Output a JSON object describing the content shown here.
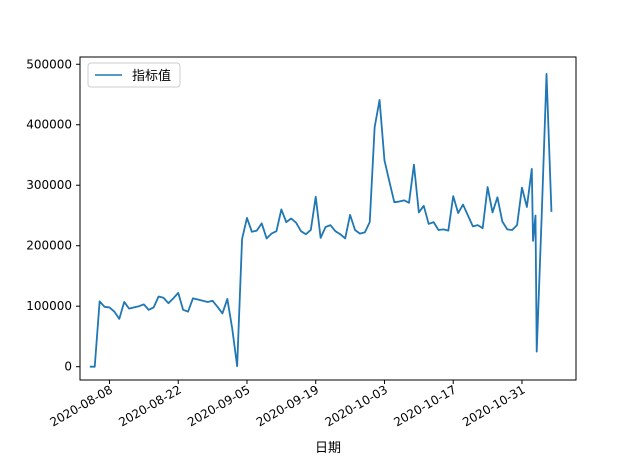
{
  "chart_data": {
    "type": "line",
    "xlabel": "日期",
    "ylabel": "",
    "x_ticks": [
      "2020-08-08",
      "2020-08-22",
      "2020-09-05",
      "2020-09-19",
      "2020-10-03",
      "2020-10-17",
      "2020-10-31"
    ],
    "y_ticks": [
      "0",
      "100000",
      "200000",
      "300000",
      "400000",
      "500000"
    ],
    "xlim": [
      "2020-08-02",
      "2020-11-11"
    ],
    "ylim": [
      -22000,
      512000
    ],
    "legend_position": "top-left",
    "grid": false,
    "series": [
      {
        "name": "指标值",
        "color": "#1f77b4",
        "points": [
          [
            "2020-08-04",
            0
          ],
          [
            "2020-08-05",
            0
          ],
          [
            "2020-08-06",
            108000
          ],
          [
            "2020-08-07",
            99000
          ],
          [
            "2020-08-08",
            98000
          ],
          [
            "2020-08-09",
            91000
          ],
          [
            "2020-08-10",
            79000
          ],
          [
            "2020-08-11",
            107000
          ],
          [
            "2020-08-12",
            96000
          ],
          [
            "2020-08-13",
            98000
          ],
          [
            "2020-08-14",
            100000
          ],
          [
            "2020-08-15",
            103000
          ],
          [
            "2020-08-16",
            94000
          ],
          [
            "2020-08-17",
            98000
          ],
          [
            "2020-08-18",
            116000
          ],
          [
            "2020-08-19",
            114000
          ],
          [
            "2020-08-20",
            105000
          ],
          [
            "2020-08-21",
            113000
          ],
          [
            "2020-08-22",
            122000
          ],
          [
            "2020-08-23",
            94000
          ],
          [
            "2020-08-24",
            91000
          ],
          [
            "2020-08-25",
            113000
          ],
          [
            "2020-08-26",
            111000
          ],
          [
            "2020-08-27",
            109000
          ],
          [
            "2020-08-28",
            107000
          ],
          [
            "2020-08-29",
            109000
          ],
          [
            "2020-08-30",
            99000
          ],
          [
            "2020-08-31",
            88000
          ],
          [
            "2020-09-01",
            112000
          ],
          [
            "2020-09-02",
            63000
          ],
          [
            "2020-09-03",
            1000
          ],
          [
            "2020-09-04",
            211000
          ],
          [
            "2020-09-05",
            246000
          ],
          [
            "2020-09-06",
            223000
          ],
          [
            "2020-09-07",
            225000
          ],
          [
            "2020-09-08",
            237000
          ],
          [
            "2020-09-09",
            212000
          ],
          [
            "2020-09-10",
            220000
          ],
          [
            "2020-09-11",
            224000
          ],
          [
            "2020-09-12",
            260000
          ],
          [
            "2020-09-13",
            239000
          ],
          [
            "2020-09-14",
            245000
          ],
          [
            "2020-09-15",
            238000
          ],
          [
            "2020-09-16",
            224000
          ],
          [
            "2020-09-17",
            219000
          ],
          [
            "2020-09-18",
            226000
          ],
          [
            "2020-09-19",
            281000
          ],
          [
            "2020-09-20",
            213000
          ],
          [
            "2020-09-21",
            231000
          ],
          [
            "2020-09-22",
            234000
          ],
          [
            "2020-09-23",
            224000
          ],
          [
            "2020-09-24",
            219000
          ],
          [
            "2020-09-25",
            212000
          ],
          [
            "2020-09-26",
            251000
          ],
          [
            "2020-09-27",
            226000
          ],
          [
            "2020-09-28",
            220000
          ],
          [
            "2020-09-29",
            222000
          ],
          [
            "2020-09-30",
            239000
          ],
          [
            "2020-10-01",
            396000
          ],
          [
            "2020-10-02",
            441000
          ],
          [
            "2020-10-03",
            341000
          ],
          [
            "2020-10-04",
            306000
          ],
          [
            "2020-10-05",
            272000
          ],
          [
            "2020-10-06",
            273000
          ],
          [
            "2020-10-07",
            275000
          ],
          [
            "2020-10-08",
            271000
          ],
          [
            "2020-10-09",
            334000
          ],
          [
            "2020-10-10",
            255000
          ],
          [
            "2020-10-11",
            266000
          ],
          [
            "2020-10-12",
            236000
          ],
          [
            "2020-10-13",
            239000
          ],
          [
            "2020-10-14",
            226000
          ],
          [
            "2020-10-15",
            227000
          ],
          [
            "2020-10-16",
            225000
          ],
          [
            "2020-10-17",
            282000
          ],
          [
            "2020-10-18",
            254000
          ],
          [
            "2020-10-19",
            268000
          ],
          [
            "2020-10-20",
            250000
          ],
          [
            "2020-10-21",
            232000
          ],
          [
            "2020-10-22",
            234000
          ],
          [
            "2020-10-23",
            229000
          ],
          [
            "2020-10-24",
            297000
          ],
          [
            "2020-10-25",
            255000
          ],
          [
            "2020-10-26",
            280000
          ],
          [
            "2020-10-27",
            240000
          ],
          [
            "2020-10-28",
            227000
          ],
          [
            "2020-10-29",
            226000
          ],
          [
            "2020-10-30",
            234000
          ],
          [
            "2020-10-31",
            296000
          ],
          [
            "2020-11-01",
            264000
          ],
          [
            "2020-11-02",
            327000
          ],
          [
            "2020-11-02T06:00",
            208000
          ],
          [
            "2020-11-02T18:00",
            250000
          ],
          [
            "2020-11-03",
            25000
          ],
          [
            "2020-11-04",
            246000
          ],
          [
            "2020-11-05",
            484000
          ],
          [
            "2020-11-06",
            256000
          ]
        ]
      }
    ]
  }
}
